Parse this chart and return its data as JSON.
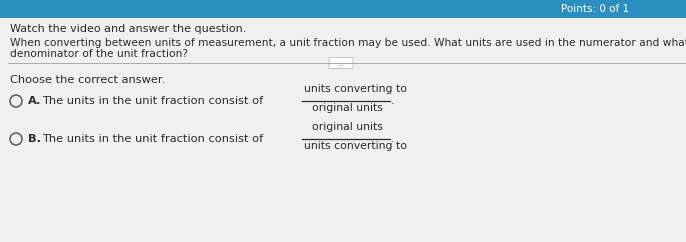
{
  "bg_color": "#e5e5e5",
  "header_color": "#2a8fbf",
  "header_text": "Points: 0 of 1",
  "title_line1": "Watch the video and answer the question.",
  "title_line2": "When converting between units of measurement, a unit fraction may be used. What units are used in the numerator and what units are used in th",
  "title_line2b": "denominator of the unit fraction?",
  "divider_text": "...",
  "choose_text": "Choose the correct answer.",
  "option_a_label": "A.",
  "option_a_text": "The units in the unit fraction consist of",
  "option_a_numerator": "units converting to",
  "option_a_denominator": "original units",
  "option_b_label": "B.",
  "option_b_text": "The units in the unit fraction consist of",
  "option_b_numerator": "original units",
  "option_b_denominator": "units converting to",
  "text_color": "#2a2a2a",
  "option_text_color": "#2a2a2a",
  "circle_color": "#666666",
  "line_color": "#aaaaaa",
  "fraction_line_color": "#2a2a2a",
  "period_text": "."
}
